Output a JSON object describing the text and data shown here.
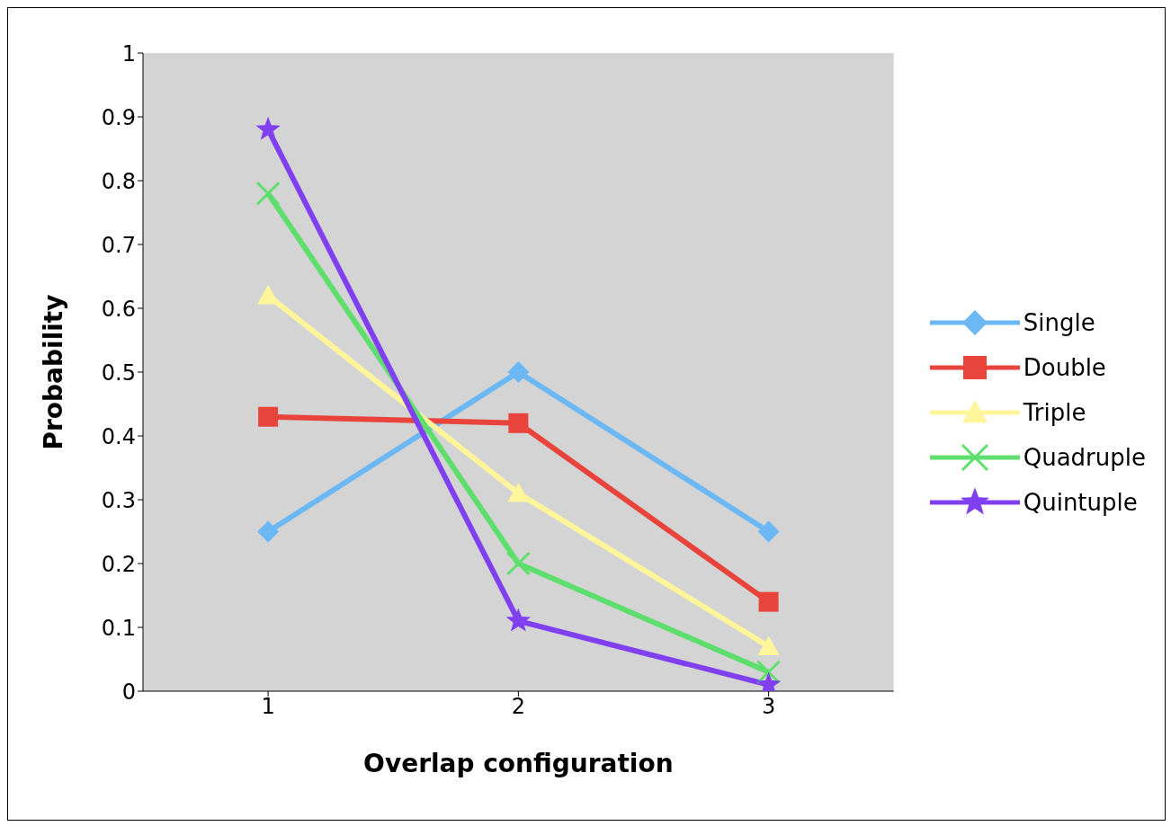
{
  "chart_data": {
    "type": "line",
    "xlabel": "Overlap configuration",
    "ylabel": "Probability",
    "categories": [
      "1",
      "2",
      "3"
    ],
    "series": [
      {
        "name": "Single",
        "color": "#6cb8f5",
        "marker": "diamond",
        "values": [
          0.25,
          0.5,
          0.25
        ]
      },
      {
        "name": "Double",
        "color": "#e8443c",
        "marker": "square",
        "values": [
          0.43,
          0.42,
          0.14
        ]
      },
      {
        "name": "Triple",
        "color": "#fff59a",
        "marker": "triangle",
        "values": [
          0.62,
          0.31,
          0.07
        ]
      },
      {
        "name": "Quadruple",
        "color": "#5ede6c",
        "marker": "cross",
        "values": [
          0.78,
          0.2,
          0.03
        ]
      },
      {
        "name": "Quintuple",
        "color": "#8040f0",
        "marker": "star",
        "values": [
          0.88,
          0.11,
          0.01
        ]
      }
    ],
    "ylim": [
      0,
      1
    ],
    "yticks": [
      0,
      0.1,
      0.2,
      0.3,
      0.4,
      0.5,
      0.6,
      0.7,
      0.8,
      0.9,
      1
    ],
    "grid": false,
    "legend": "right",
    "line_style": "solid"
  }
}
